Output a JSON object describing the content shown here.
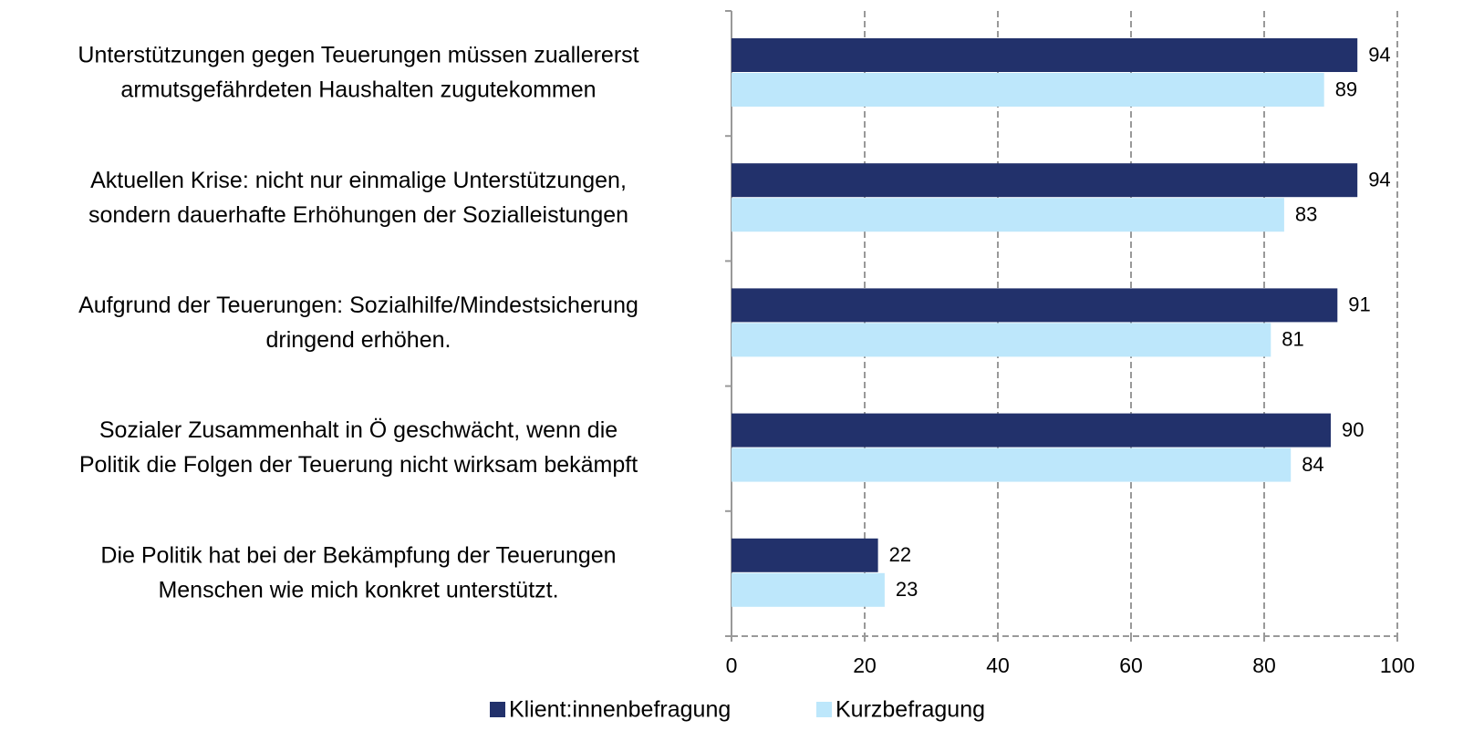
{
  "chart_data": {
    "type": "hbar",
    "categories": [
      [
        "Unterstützungen gegen Teuerungen müssen zuallererst",
        "armutsgefährdeten Haushalten zugutekommen"
      ],
      [
        "Aktuellen Krise: nicht nur einmalige Unterstützungen,",
        "sondern dauerhafte Erhöhungen der Sozialleistungen"
      ],
      [
        "Aufgrund der Teuerungen: Sozialhilfe/Mindestsicherung",
        "dringend erhöhen."
      ],
      [
        "Sozialer Zusammenhalt in Ö geschwächt, wenn die",
        "Politik die Folgen der Teuerung nicht wirksam bekämpft"
      ],
      [
        "Die Politik hat bei der Bekämpfung der Teuerungen",
        "Menschen wie mich konkret unterstützt."
      ]
    ],
    "series": [
      {
        "name": "Klient:innenbefragung",
        "color": "#22316b",
        "values": [
          94,
          94,
          91,
          90,
          22
        ]
      },
      {
        "name": "Kurzbefragung",
        "color": "#bde7fb",
        "values": [
          89,
          83,
          81,
          84,
          23
        ]
      }
    ],
    "xlim": [
      0,
      100
    ],
    "xticks": [
      0,
      20,
      40,
      60,
      80,
      100
    ],
    "grid": true,
    "legend": "bottom"
  }
}
